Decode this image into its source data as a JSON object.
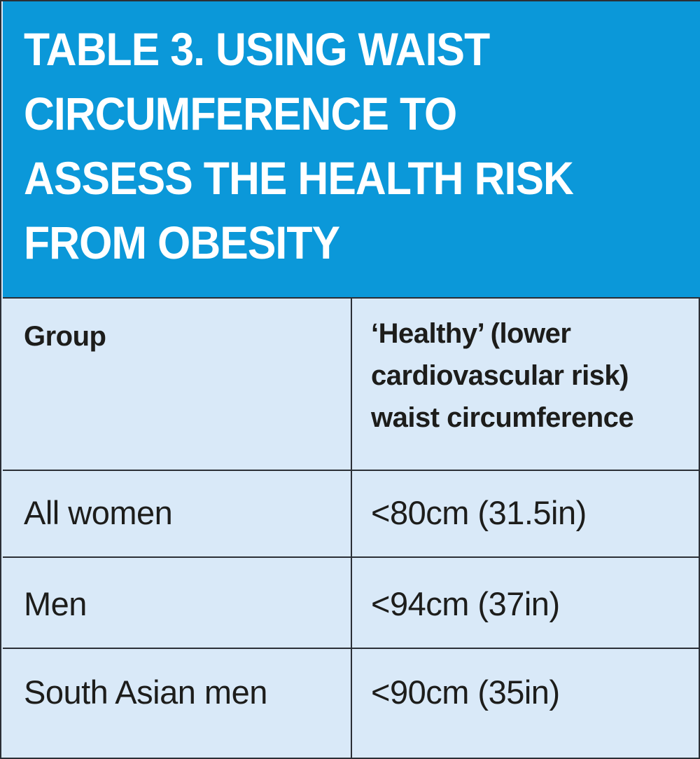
{
  "title": "TABLE 3. USING WAIST CIRCUMFERENCE TO ASSESS THE HEALTH RISK FROM OBESITY",
  "colors": {
    "title_background": "#0b98d9",
    "table_background": "#d9e9f8",
    "title_text": "#ffffff",
    "body_text": "#1d1d1b",
    "rule": "#2b2f36"
  },
  "table": {
    "headers": [
      "Group",
      "‘Healthy’ (lower cardiovascular risk) waist circumference"
    ],
    "rows": [
      [
        "All women",
        "<80cm (31.5in)"
      ],
      [
        "Men",
        "<94cm (37in)"
      ],
      [
        "South Asian men",
        "<90cm (35in)"
      ]
    ]
  }
}
